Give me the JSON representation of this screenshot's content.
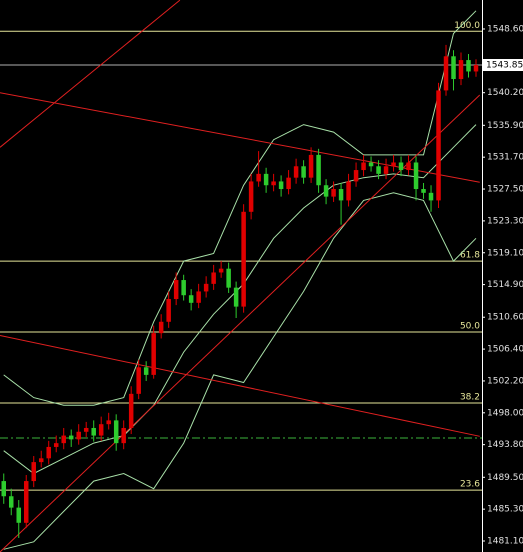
{
  "chart_data": {
    "type": "candlestick",
    "up_color": "#e00000",
    "down_color": "#2ecc2e",
    "open": [
      1489.0,
      1487.0,
      1485.5,
      1483.5,
      1489.0,
      1491.5,
      1492.0,
      1493.5,
      1494.0,
      1495.0,
      1494.5,
      1495.5,
      1496.0,
      1495.0,
      1496.5,
      1497.0,
      1494.0,
      1496.0,
      1500.5,
      1504.0,
      1503.0,
      1508.5,
      1510.0,
      1513.0,
      1515.5,
      1513.5,
      1512.5,
      1514.0,
      1515.0,
      1516.5,
      1517.0,
      1514.5,
      1512.0,
      1524.5,
      1528.5,
      1529.5,
      1528.0,
      1528.5,
      1527.5,
      1529.0,
      1530.5,
      1529.0,
      1532.0,
      1528.0,
      1526.5,
      1527.5,
      1526.0,
      1528.5,
      1530.0,
      1531.0,
      1530.5,
      1529.5,
      1530.5,
      1531.0,
      1530.0,
      1531.0,
      1527.5,
      1527.0,
      1526.0,
      1540.5,
      1545.0,
      1542.0,
      1544.5,
      1543.0
    ],
    "high": [
      1490.0,
      1488.0,
      1486.5,
      1489.8,
      1492.3,
      1493.0,
      1494.3,
      1495.0,
      1496.0,
      1495.8,
      1496.5,
      1496.8,
      1497.0,
      1497.5,
      1498.0,
      1497.8,
      1497.0,
      1501.5,
      1505.0,
      1504.8,
      1509.5,
      1511.0,
      1514.0,
      1516.5,
      1516.2,
      1514.3,
      1515.0,
      1516.0,
      1517.5,
      1518.0,
      1517.8,
      1515.3,
      1525.5,
      1529.5,
      1532.5,
      1530.3,
      1529.5,
      1529.3,
      1530.0,
      1531.5,
      1531.3,
      1533.0,
      1532.8,
      1528.8,
      1528.5,
      1528.3,
      1529.5,
      1531.0,
      1532.0,
      1531.8,
      1531.3,
      1531.5,
      1532.0,
      1531.8,
      1532.0,
      1531.8,
      1528.3,
      1528.0,
      1541.5,
      1546.5,
      1545.8,
      1545.5,
      1545.3,
      1544.6
    ],
    "low": [
      1486.0,
      1484.5,
      1481.5,
      1482.8,
      1488.2,
      1490.8,
      1491.2,
      1492.8,
      1493.2,
      1493.5,
      1493.8,
      1494.8,
      1494.2,
      1494.3,
      1495.8,
      1493.0,
      1493.2,
      1495.2,
      1499.8,
      1502.2,
      1502.5,
      1507.8,
      1509.2,
      1512.2,
      1512.8,
      1511.5,
      1511.8,
      1513.2,
      1514.2,
      1515.8,
      1513.8,
      1510.5,
      1511.2,
      1523.5,
      1527.8,
      1527.0,
      1527.2,
      1526.5,
      1526.8,
      1528.2,
      1528.2,
      1528.3,
      1527.0,
      1525.5,
      1525.8,
      1522.8,
      1525.2,
      1527.8,
      1529.2,
      1529.8,
      1528.8,
      1528.8,
      1529.8,
      1529.2,
      1529.3,
      1526.0,
      1526.2,
      1524.5,
      1525.0,
      1539.8,
      1540.5,
      1541.2,
      1542.2,
      1542.3
    ],
    "close": [
      1487.0,
      1485.5,
      1483.5,
      1489.0,
      1491.5,
      1492.0,
      1493.5,
      1494.0,
      1495.0,
      1494.5,
      1495.5,
      1496.0,
      1495.0,
      1496.5,
      1497.0,
      1494.0,
      1496.0,
      1500.5,
      1504.0,
      1503.0,
      1508.5,
      1510.0,
      1513.0,
      1515.5,
      1513.5,
      1512.5,
      1514.0,
      1515.0,
      1516.5,
      1517.0,
      1514.5,
      1512.0,
      1524.5,
      1528.5,
      1529.5,
      1528.0,
      1528.5,
      1527.5,
      1529.0,
      1530.5,
      1529.0,
      1532.0,
      1528.0,
      1526.5,
      1527.5,
      1526.0,
      1528.5,
      1530.0,
      1531.0,
      1530.5,
      1529.5,
      1530.5,
      1531.0,
      1530.0,
      1531.0,
      1527.5,
      1527.0,
      1526.0,
      1540.5,
      1545.0,
      1542.0,
      1544.5,
      1543.0,
      1543.85
    ],
    "xlim": [
      -0.5,
      63.8
    ],
    "ylim": [
      1479.65,
      1552.42
    ],
    "yticks": [
      {
        "value": 1548.6,
        "label": "1548.60"
      },
      {
        "value": 1540.2,
        "label": "1540.20"
      },
      {
        "value": 1535.9,
        "label": "1535.90"
      },
      {
        "value": 1531.7,
        "label": "1531.70"
      },
      {
        "value": 1527.5,
        "label": "1527.50"
      },
      {
        "value": 1523.3,
        "label": "1523.30"
      },
      {
        "value": 1519.1,
        "label": "1519.10"
      },
      {
        "value": 1514.9,
        "label": "1514.90"
      },
      {
        "value": 1510.6,
        "label": "1510.60"
      },
      {
        "value": 1506.4,
        "label": "1506.40"
      },
      {
        "value": 1502.2,
        "label": "1502.20"
      },
      {
        "value": 1498.0,
        "label": "1498.00"
      },
      {
        "value": 1493.8,
        "label": "1493.80"
      },
      {
        "value": 1489.5,
        "label": "1489.50"
      },
      {
        "value": 1485.3,
        "label": "1485.30"
      },
      {
        "value": 1481.1,
        "label": "1481.10"
      }
    ],
    "current_price": 1543.85,
    "fib_color": "#e6e69a",
    "fib_levels": [
      {
        "value": 1548.3,
        "label": "100.0"
      },
      {
        "value": 1518.0,
        "label": "61.8"
      },
      {
        "value": 1508.66,
        "label": "50.0"
      },
      {
        "value": 1499.3,
        "label": "38.2"
      },
      {
        "value": 1487.8,
        "label": "23.6"
      }
    ],
    "signal_line": {
      "value": 1494.68,
      "color": "#3cb43c"
    },
    "trendline_color": "#e02020",
    "trendlines": [
      {
        "x": [
          -0.5,
          23.5
        ],
        "y": [
          1533.0,
          1552.4
        ]
      },
      {
        "x": [
          -0.5,
          63.5
        ],
        "y": [
          1540.2,
          1528.4
        ]
      },
      {
        "x": [
          -0.5,
          63.5
        ],
        "y": [
          1508.2,
          1494.9
        ]
      },
      {
        "x": [
          -0.5,
          63.5
        ],
        "y": [
          1479.65,
          1539.9
        ]
      }
    ],
    "band_color": "#a8e0a8",
    "bands": {
      "x": [
        0,
        4,
        8,
        12,
        16,
        20,
        24,
        28,
        32,
        36,
        40,
        44,
        48,
        52,
        56,
        60,
        63
      ],
      "upper": [
        1503,
        1500,
        1499,
        1499,
        1500,
        1510,
        1518,
        1519,
        1528,
        1534,
        1536,
        1535,
        1532,
        1532,
        1532,
        1548,
        1551
      ],
      "middle": [
        1493,
        1490,
        1492,
        1494,
        1495,
        1499,
        1506,
        1511,
        1515,
        1521,
        1525,
        1528,
        1529,
        1529.5,
        1529,
        1533,
        1536
      ],
      "lower": [
        1480,
        1481,
        1485,
        1489,
        1490,
        1488,
        1494,
        1503,
        1502,
        1508,
        1514,
        1521,
        1526,
        1527,
        1526,
        1518,
        1521
      ]
    }
  }
}
